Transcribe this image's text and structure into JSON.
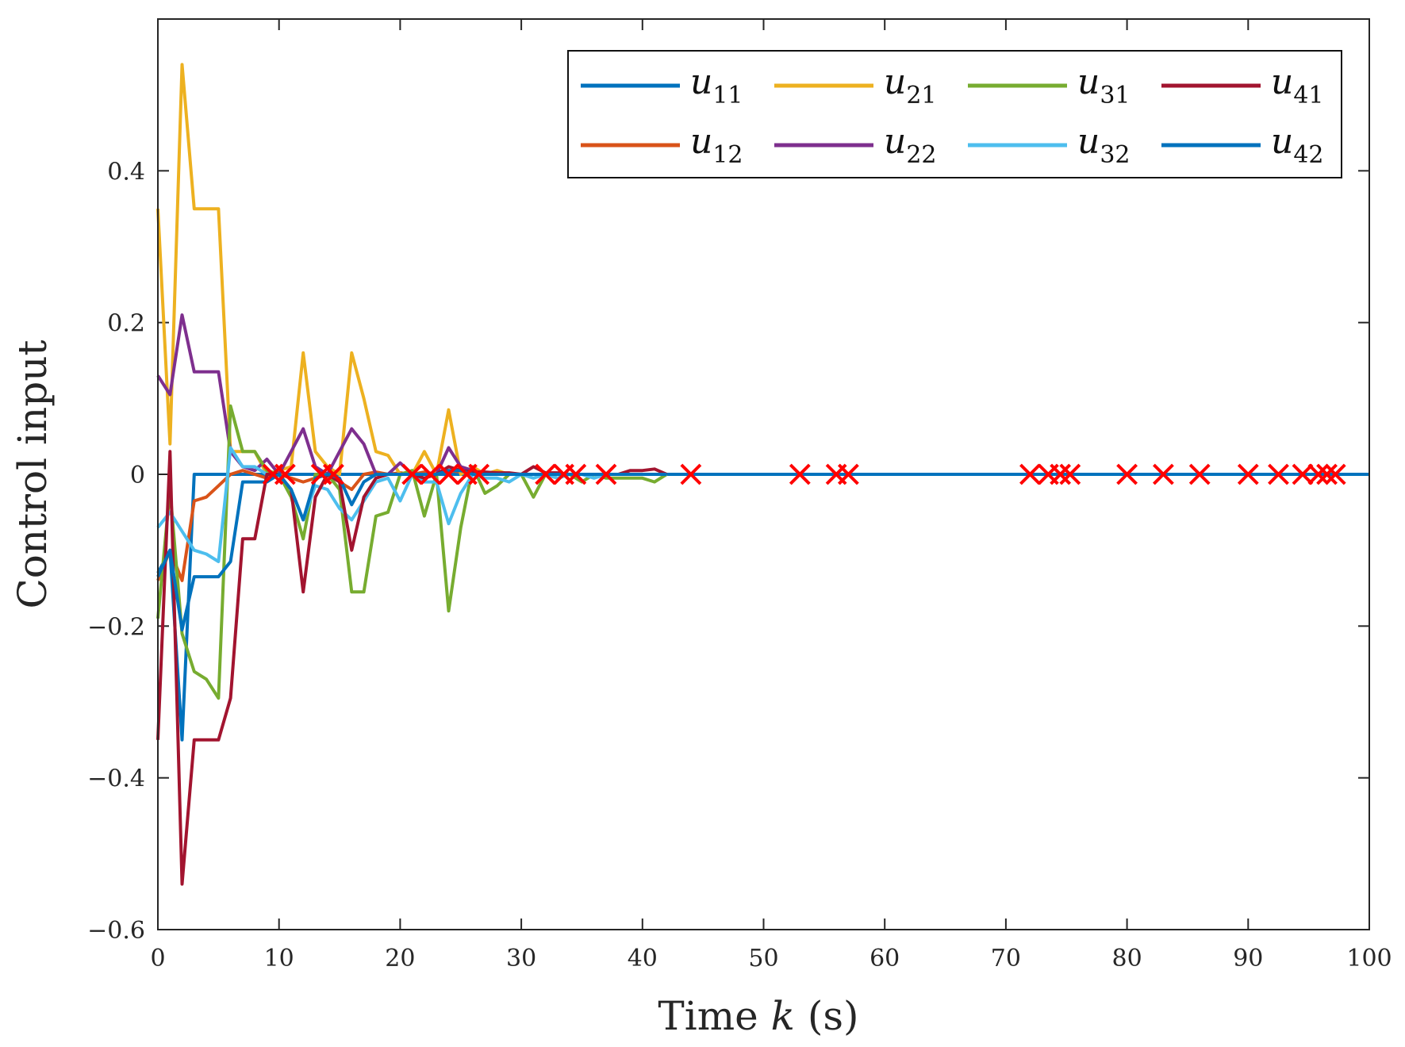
{
  "chart_data": {
    "type": "line",
    "title": "",
    "xlabel": "Time k (s)",
    "xlabel_parts": {
      "prefix": "Time ",
      "var": "k",
      "suffix": " (s)"
    },
    "ylabel": "Control input",
    "xlim": [
      0,
      100
    ],
    "ylim": [
      -0.6,
      0.6
    ],
    "xticks": [
      0,
      10,
      20,
      30,
      40,
      50,
      60,
      70,
      80,
      90,
      100
    ],
    "yticks": [
      -0.6,
      -0.4,
      -0.2,
      0,
      0.2,
      0.4
    ],
    "ytick_labels": [
      "−0.6",
      "−0.4",
      "−0.2",
      "0",
      "0.2",
      "0.4"
    ],
    "grid": false,
    "legend_position": "top-right",
    "series": [
      {
        "name": "u11",
        "base": "u",
        "sub": "11",
        "color": "#0072BD",
        "x": [
          0,
          1,
          2,
          3,
          4,
          5,
          6,
          7,
          8,
          9,
          10,
          11,
          12,
          13,
          14,
          15,
          16,
          17,
          18,
          19,
          20,
          21,
          22,
          23,
          24,
          25,
          26,
          27,
          28,
          29,
          30,
          31,
          32,
          33,
          34,
          35,
          36,
          37,
          38,
          39,
          40,
          41,
          42,
          100
        ],
        "y": [
          -0.13,
          -0.1,
          -0.35,
          0,
          0,
          0,
          0,
          0,
          0,
          0,
          0,
          0,
          0,
          0,
          0,
          0,
          0,
          0,
          0,
          0,
          0,
          0,
          0,
          0,
          0,
          0,
          0,
          0,
          0,
          0,
          0,
          0,
          0,
          0,
          0,
          0,
          0,
          0,
          0,
          0,
          0,
          0,
          0,
          0
        ]
      },
      {
        "name": "u12",
        "base": "u",
        "sub": "12",
        "color": "#D95319",
        "x": [
          0,
          1,
          2,
          3,
          4,
          5,
          6,
          7,
          8,
          9,
          10,
          11,
          12,
          13,
          14,
          15,
          16,
          17,
          18,
          19,
          20,
          21,
          22,
          23,
          24,
          25,
          26,
          27,
          28,
          29,
          30,
          31,
          32,
          33,
          34,
          35,
          36,
          37,
          38,
          39,
          40,
          41,
          42
        ],
        "y": [
          -0.14,
          -0.1,
          -0.14,
          -0.035,
          -0.03,
          -0.015,
          0.0,
          0.005,
          0.0,
          -0.005,
          0.0,
          -0.005,
          -0.01,
          -0.005,
          0.0,
          -0.01,
          -0.02,
          0.0,
          0.003,
          0.0,
          0.002,
          0.0,
          0.003,
          0.0,
          0.005,
          0.003,
          0.003,
          0.002,
          0.001,
          0.0,
          0.0,
          0.0,
          0.0,
          0.0,
          0.0,
          0.0,
          0.0,
          0.0,
          0.0,
          0.0,
          0.0,
          0.0,
          0.0
        ]
      },
      {
        "name": "u21",
        "base": "u",
        "sub": "21",
        "color": "#EDB120",
        "x": [
          0,
          1,
          2,
          3,
          4,
          5,
          6,
          7,
          8,
          9,
          10,
          11,
          12,
          13,
          14,
          15,
          16,
          17,
          18,
          19,
          20,
          21,
          22,
          23,
          24,
          25,
          26,
          27,
          28,
          29,
          30,
          31,
          32,
          33,
          34,
          35,
          36,
          37,
          38,
          39,
          40,
          41,
          42
        ],
        "y": [
          0.35,
          0.04,
          0.54,
          0.35,
          0.35,
          0.35,
          0.03,
          0.03,
          0.03,
          0.0,
          0.005,
          0.01,
          0.16,
          0.03,
          0.01,
          0.0,
          0.16,
          0.1,
          0.03,
          0.025,
          0.0,
          0.0,
          0.03,
          0.0,
          0.085,
          0.0,
          0.01,
          0.0,
          0.005,
          0.0,
          0.0,
          0.0,
          0.0,
          0.0,
          0.0,
          0.0,
          0.0,
          0.0,
          0.0,
          0.0,
          0.0,
          0.0,
          0.0
        ]
      },
      {
        "name": "u22",
        "base": "u",
        "sub": "22",
        "color": "#7E2F8E",
        "x": [
          0,
          1,
          2,
          3,
          4,
          5,
          6,
          7,
          8,
          9,
          10,
          11,
          12,
          13,
          14,
          15,
          16,
          17,
          18,
          19,
          20,
          21,
          22,
          23,
          24,
          25,
          26,
          27,
          28,
          29,
          30,
          31,
          32,
          33,
          34,
          35,
          36,
          37,
          38,
          39,
          40,
          41,
          42
        ],
        "y": [
          0.13,
          0.105,
          0.21,
          0.135,
          0.135,
          0.135,
          0.03,
          0.01,
          0.005,
          0.02,
          0.0,
          0.03,
          0.06,
          0.01,
          0.0,
          0.03,
          0.06,
          0.04,
          0.0,
          0.0,
          0.015,
          0.0,
          0.0,
          0.0,
          0.035,
          0.01,
          0.005,
          0.0,
          0.002,
          0.0,
          0.0,
          0.0,
          0.0,
          0.0,
          0.0,
          0.0,
          0.0,
          0.0,
          0.0,
          0.0,
          0.0,
          0.0,
          0.0
        ]
      },
      {
        "name": "u31",
        "base": "u",
        "sub": "31",
        "color": "#77AC30",
        "x": [
          0,
          1,
          2,
          3,
          4,
          5,
          6,
          7,
          8,
          9,
          10,
          11,
          12,
          13,
          14,
          15,
          16,
          17,
          18,
          19,
          20,
          21,
          22,
          23,
          24,
          25,
          26,
          27,
          28,
          29,
          30,
          31,
          32,
          33,
          34,
          35,
          36,
          37,
          38,
          39,
          40,
          41,
          42
        ],
        "y": [
          -0.19,
          -0.02,
          -0.21,
          -0.26,
          -0.27,
          -0.295,
          0.09,
          0.03,
          0.03,
          0.005,
          0.0,
          -0.03,
          -0.085,
          0.0,
          0.0,
          -0.02,
          -0.155,
          -0.155,
          -0.055,
          -0.05,
          0.0,
          0.005,
          -0.055,
          0.0,
          -0.18,
          -0.07,
          0.01,
          -0.025,
          -0.015,
          0.0,
          0.0,
          -0.03,
          0.0,
          -0.005,
          0.0,
          -0.01,
          0.0,
          -0.005,
          -0.005,
          -0.005,
          -0.005,
          -0.01,
          0.0
        ]
      },
      {
        "name": "u32",
        "base": "u",
        "sub": "32",
        "color": "#4DBEEE",
        "x": [
          0,
          1,
          2,
          3,
          4,
          5,
          6,
          7,
          8,
          9,
          10,
          11,
          12,
          13,
          14,
          15,
          16,
          17,
          18,
          19,
          20,
          21,
          22,
          23,
          24,
          25,
          26,
          27,
          28,
          29,
          30,
          31,
          32,
          33,
          34,
          35,
          36,
          37,
          38,
          39,
          40,
          41,
          42
        ],
        "y": [
          -0.07,
          -0.05,
          -0.075,
          -0.1,
          -0.105,
          -0.115,
          0.035,
          0.01,
          0.01,
          0.0,
          0.0,
          -0.02,
          -0.06,
          -0.015,
          -0.02,
          -0.045,
          -0.06,
          -0.035,
          -0.01,
          -0.005,
          -0.035,
          0.0,
          -0.01,
          -0.01,
          -0.065,
          -0.025,
          0.0,
          -0.005,
          -0.005,
          -0.01,
          0.0,
          -0.005,
          0.0,
          -0.005,
          0.0,
          0.0,
          -0.005,
          0.0,
          0.0,
          0.0,
          0.0,
          0.0,
          0.0
        ]
      },
      {
        "name": "u41",
        "base": "u",
        "sub": "41",
        "color": "#A2142F",
        "x": [
          0,
          1,
          2,
          3,
          4,
          5,
          6,
          7,
          8,
          9,
          10,
          11,
          12,
          13,
          14,
          15,
          16,
          17,
          18,
          19,
          20,
          21,
          22,
          23,
          24,
          25,
          26,
          27,
          28,
          29,
          30,
          31,
          32,
          33,
          34,
          35,
          36,
          37,
          38,
          39,
          40,
          41,
          42
        ],
        "y": [
          -0.35,
          0.03,
          -0.54,
          -0.35,
          -0.35,
          -0.35,
          -0.295,
          -0.085,
          -0.085,
          0.0,
          0.0,
          -0.02,
          -0.155,
          -0.03,
          0.0,
          -0.01,
          -0.1,
          -0.03,
          -0.005,
          0.0,
          0.0,
          0.0,
          -0.005,
          0.0,
          0.01,
          0.005,
          0.003,
          0.003,
          0.002,
          0.002,
          0.0,
          0.01,
          0.002,
          0.002,
          0.0,
          0.0,
          0.0,
          0.0,
          0.0,
          0.005,
          0.005,
          0.007,
          0.0
        ]
      },
      {
        "name": "u42",
        "base": "u",
        "sub": "42",
        "color": "#0072BD",
        "x": [
          0,
          1,
          2,
          3,
          4,
          5,
          6,
          7,
          8,
          9,
          10,
          11,
          12,
          13,
          14,
          15,
          16,
          17,
          18,
          19,
          20,
          21,
          22,
          23,
          24,
          25,
          26,
          27,
          28,
          29,
          30,
          31,
          32,
          33,
          34,
          35,
          36,
          37,
          38,
          39,
          40,
          41,
          42
        ],
        "y": [
          -0.135,
          -0.1,
          -0.205,
          -0.135,
          -0.135,
          -0.135,
          -0.115,
          -0.01,
          -0.01,
          -0.01,
          0.0,
          -0.02,
          -0.06,
          -0.005,
          0.0,
          -0.005,
          -0.04,
          -0.01,
          0.0,
          0.0,
          0.0,
          0.0,
          0.0,
          0.0,
          0.005,
          0.005,
          0.0,
          0.0,
          0.0,
          0.0,
          0.0,
          0.0,
          0.0,
          0.0,
          0.0,
          0.0,
          0.0,
          0.0,
          0.0,
          0.0,
          0.0,
          0.0,
          0.0
        ]
      }
    ],
    "event_markers": {
      "symbol": "x",
      "color": "#FF0000",
      "y": 0,
      "x": [
        9.5,
        10.5,
        13.5,
        14.5,
        21,
        22.5,
        24,
        25.5,
        26.5,
        32,
        33.5,
        34.5,
        37,
        44,
        53,
        56,
        57,
        72,
        73.5,
        74.5,
        75.3,
        80,
        83,
        86,
        90,
        92.5,
        94.5,
        95.8,
        96.5,
        97.2
      ]
    }
  }
}
